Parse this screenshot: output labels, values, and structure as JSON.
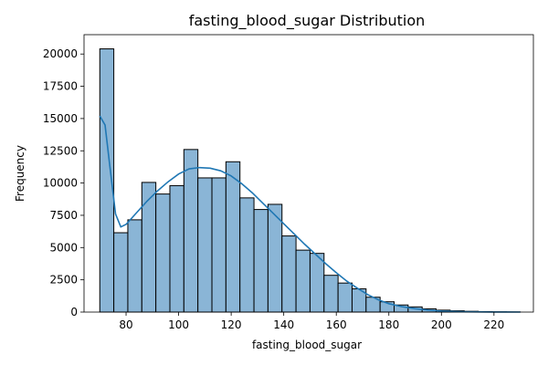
{
  "chart_data": {
    "type": "bar",
    "title": "fasting_blood_sugar Distribution",
    "xlabel": "fasting_blood_sugar",
    "ylabel": "Frequency",
    "xlim": [
      64,
      235
    ],
    "ylim": [
      0,
      21500
    ],
    "x_ticks": [
      80,
      100,
      120,
      140,
      160,
      180,
      200,
      220
    ],
    "y_ticks": [
      0,
      2500,
      5000,
      7500,
      10000,
      12500,
      15000,
      17500,
      20000
    ],
    "bin_edges": [
      70,
      75.33,
      80.67,
      86,
      91.33,
      96.67,
      102,
      107.33,
      112.67,
      118,
      123.33,
      128.67,
      134,
      139.33,
      144.67,
      150,
      155.33,
      160.67,
      166,
      171.33,
      176.67,
      182,
      187.33,
      192.67,
      198,
      203.33,
      208.67,
      214,
      219.33,
      224.67,
      230
    ],
    "values": [
      20400,
      6150,
      7150,
      10050,
      9150,
      9800,
      12600,
      10400,
      10400,
      11650,
      8850,
      7950,
      8350,
      5900,
      4800,
      4550,
      2850,
      2250,
      1800,
      1150,
      800,
      550,
      400,
      250,
      150,
      100,
      60,
      40,
      20,
      10
    ],
    "kde": {
      "x": [
        70,
        72,
        74,
        76,
        78,
        80,
        84,
        88,
        92,
        96,
        100,
        104,
        108,
        112,
        116,
        120,
        124,
        128,
        132,
        136,
        140,
        144,
        148,
        152,
        156,
        160,
        164,
        168,
        172,
        176,
        180,
        185,
        190,
        195,
        200,
        205,
        210,
        215,
        220,
        225,
        230
      ],
      "y": [
        15200,
        14500,
        11000,
        7600,
        6600,
        6800,
        7700,
        8600,
        9400,
        10100,
        10700,
        11100,
        11200,
        11150,
        10950,
        10550,
        9950,
        9250,
        8450,
        7650,
        6850,
        6050,
        5250,
        4500,
        3750,
        3050,
        2400,
        1850,
        1350,
        950,
        650,
        420,
        260,
        150,
        80,
        40,
        20,
        10,
        5,
        2,
        1
      ]
    },
    "grid": false,
    "colors": {
      "bar_fill": "#8ab5d6",
      "bar_edge": "#000000",
      "kde_line": "#1f77b4"
    }
  }
}
